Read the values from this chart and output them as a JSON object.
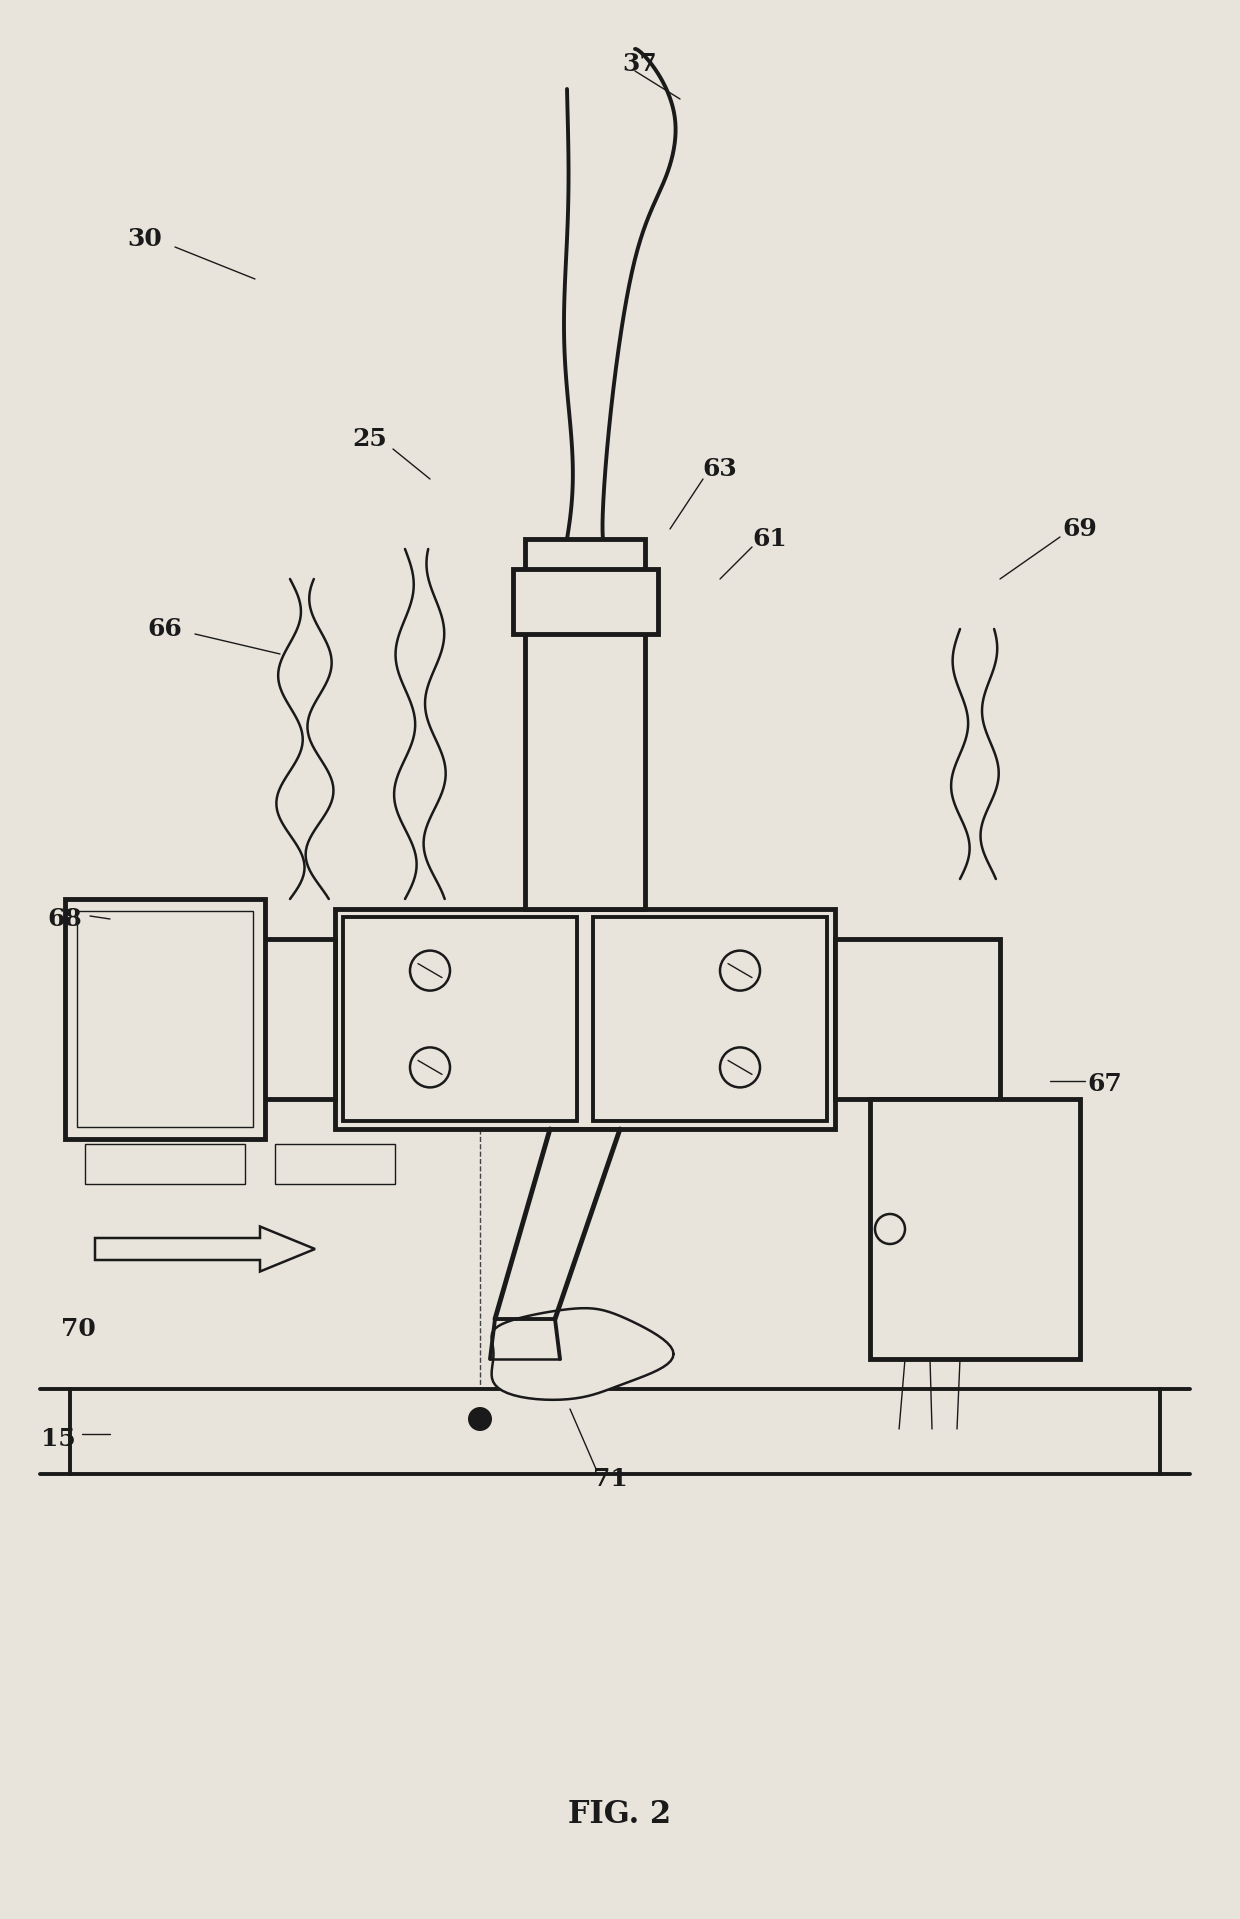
{
  "background_color": "#e8e4dc",
  "line_color": "#1a1a1a",
  "fig_label": "FIG. 2",
  "lw_thin": 1.0,
  "lw_med": 1.8,
  "lw_thick": 2.8,
  "lw_vthick": 3.5
}
